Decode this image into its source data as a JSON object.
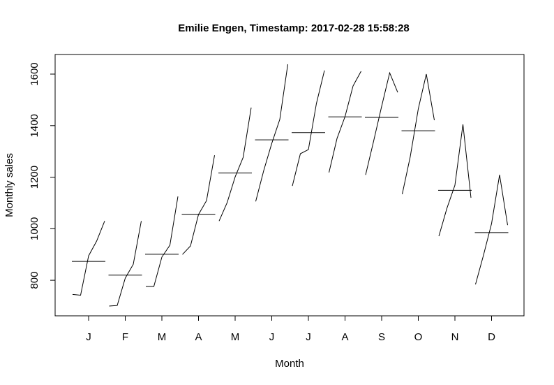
{
  "chart_data": {
    "type": "monthplot",
    "title": "Emilie Engen, Timestamp: 2017-02-28 15:58:28",
    "x_label": "Month",
    "y_label": "Monthly sales",
    "categories": [
      "J",
      "F",
      "M",
      "A",
      "M",
      "J",
      "J",
      "A",
      "S",
      "O",
      "N",
      "D"
    ],
    "values": [
      [
        745,
        742,
        895,
        952,
        1030
      ],
      [
        700,
        702,
        808,
        862,
        1030
      ],
      [
        776,
        776,
        890,
        936,
        1125
      ],
      [
        900,
        933,
        1055,
        1109,
        1285
      ],
      [
        1030,
        1101,
        1201,
        1277,
        1470
      ],
      [
        1106,
        1226,
        1331,
        1424,
        1638
      ],
      [
        1166,
        1291,
        1307,
        1486,
        1614
      ],
      [
        1218,
        1350,
        1435,
        1554,
        1611
      ],
      [
        1209,
        1340,
        1475,
        1605,
        1529
      ],
      [
        1134,
        1280,
        1465,
        1600,
        1421
      ],
      [
        971,
        1079,
        1169,
        1405,
        1120
      ],
      [
        784,
        898,
        1020,
        1209,
        1014
      ]
    ],
    "means": [
      873,
      820,
      901,
      1056,
      1216,
      1345,
      1373,
      1434,
      1432,
      1380,
      1149,
      985
    ],
    "color": "#000000",
    "ylim": [
      662,
      1676
    ],
    "yticks": [
      800,
      1000,
      1200,
      1400,
      1600
    ]
  }
}
